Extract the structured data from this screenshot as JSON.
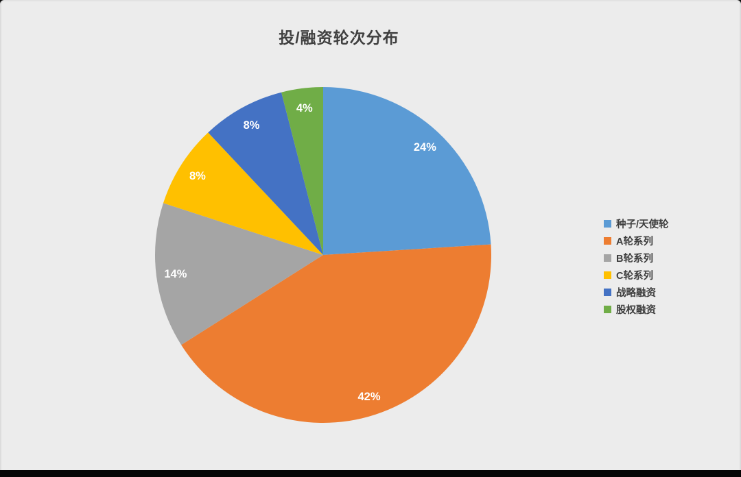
{
  "window": {
    "background_color": "#ececec",
    "bottom_bar_color": "#060606"
  },
  "chart_data": {
    "type": "pie",
    "title": "投/融资轮次分布",
    "categories": [
      "种子/天使轮",
      "A轮系列",
      "B轮系列",
      "C轮系列",
      "战略融资",
      "股权融资"
    ],
    "values": [
      24,
      42,
      14,
      8,
      8,
      4
    ],
    "value_unit": "percent",
    "slice_labels": [
      "24%",
      "42%",
      "14%",
      "8%",
      "8%",
      "4%"
    ],
    "colors": [
      "#5b9bd5",
      "#ed7d31",
      "#a5a5a5",
      "#ffc000",
      "#4472c4",
      "#70ad47"
    ],
    "start_angle_deg": 0,
    "direction": "clockwise",
    "legend_position": "right",
    "title_color": "#404040",
    "slice_label_color": "#ffffff",
    "legend_text_color": "#3d3d3d"
  }
}
